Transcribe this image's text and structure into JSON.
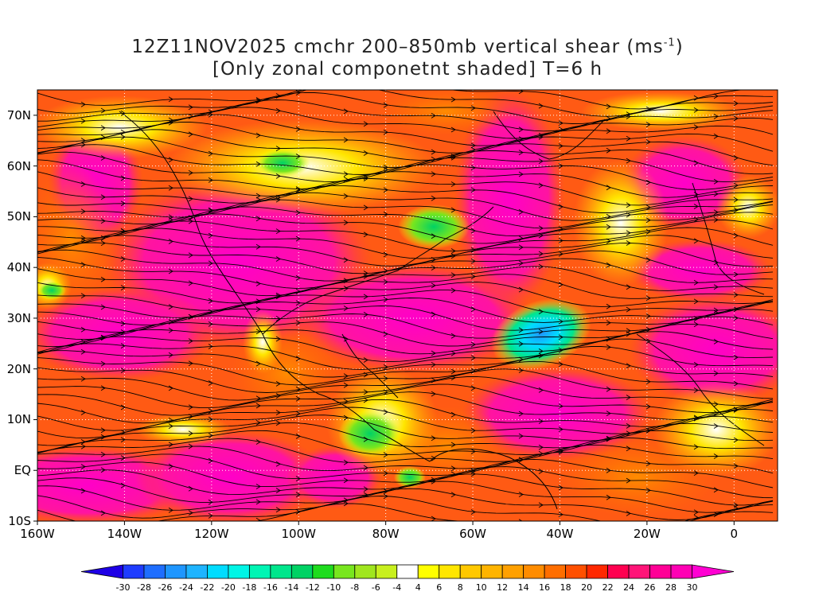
{
  "title": {
    "line1": "12Z11NOV2025 cmchr 200–850mb vertical shear (ms",
    "line1_sup": "-1",
    "line1_end": ")",
    "line2": "[Only zonal componetnt shaded] T=6 h"
  },
  "map": {
    "lon_range": [
      -160,
      10
    ],
    "lat_range": [
      -10,
      75
    ],
    "grid": true,
    "lon_ticks": [
      {
        "value": -160,
        "label": "160W"
      },
      {
        "value": -140,
        "label": "140W"
      },
      {
        "value": -120,
        "label": "120W"
      },
      {
        "value": -100,
        "label": "100W"
      },
      {
        "value": -80,
        "label": "80W"
      },
      {
        "value": -60,
        "label": "60W"
      },
      {
        "value": -40,
        "label": "40W"
      },
      {
        "value": -20,
        "label": "20W"
      },
      {
        "value": 0,
        "label": "0"
      }
    ],
    "lat_ticks": [
      {
        "value": -10,
        "label": "10S"
      },
      {
        "value": 0,
        "label": "EQ"
      },
      {
        "value": 10,
        "label": "10N"
      },
      {
        "value": 20,
        "label": "20N"
      },
      {
        "value": 30,
        "label": "30N"
      },
      {
        "value": 40,
        "label": "40N"
      },
      {
        "value": 50,
        "label": "50N"
      },
      {
        "value": 60,
        "label": "60N"
      },
      {
        "value": 70,
        "label": "70N"
      }
    ]
  },
  "colorbar": {
    "levels": [
      "-30",
      "-28",
      "-26",
      "-24",
      "-22",
      "-20",
      "-18",
      "-16",
      "-14",
      "-12",
      "-10",
      "-8",
      "-6",
      "-4",
      "4",
      "6",
      "8",
      "10",
      "12",
      "14",
      "16",
      "18",
      "20",
      "22",
      "24",
      "26",
      "28",
      "30"
    ],
    "colors": [
      "#1e00e6",
      "#1e3cff",
      "#1e6eff",
      "#1e96ff",
      "#1eb4ff",
      "#00dcff",
      "#00f5e6",
      "#00f5b4",
      "#00e68c",
      "#00d264",
      "#1edc1e",
      "#78e61e",
      "#a0e61e",
      "#c8f01e",
      "#ffffff",
      "#ffff00",
      "#ffe600",
      "#ffc800",
      "#ffb400",
      "#ffa000",
      "#ff8c00",
      "#ff6e00",
      "#ff5000",
      "#ff2800",
      "#ff0050",
      "#ff1478",
      "#ff0096",
      "#ff00b4",
      "#ff00d2"
    ]
  },
  "colors": {
    "streamline": "#000000",
    "coastline": "#000000",
    "contour_negative": "#800080"
  }
}
